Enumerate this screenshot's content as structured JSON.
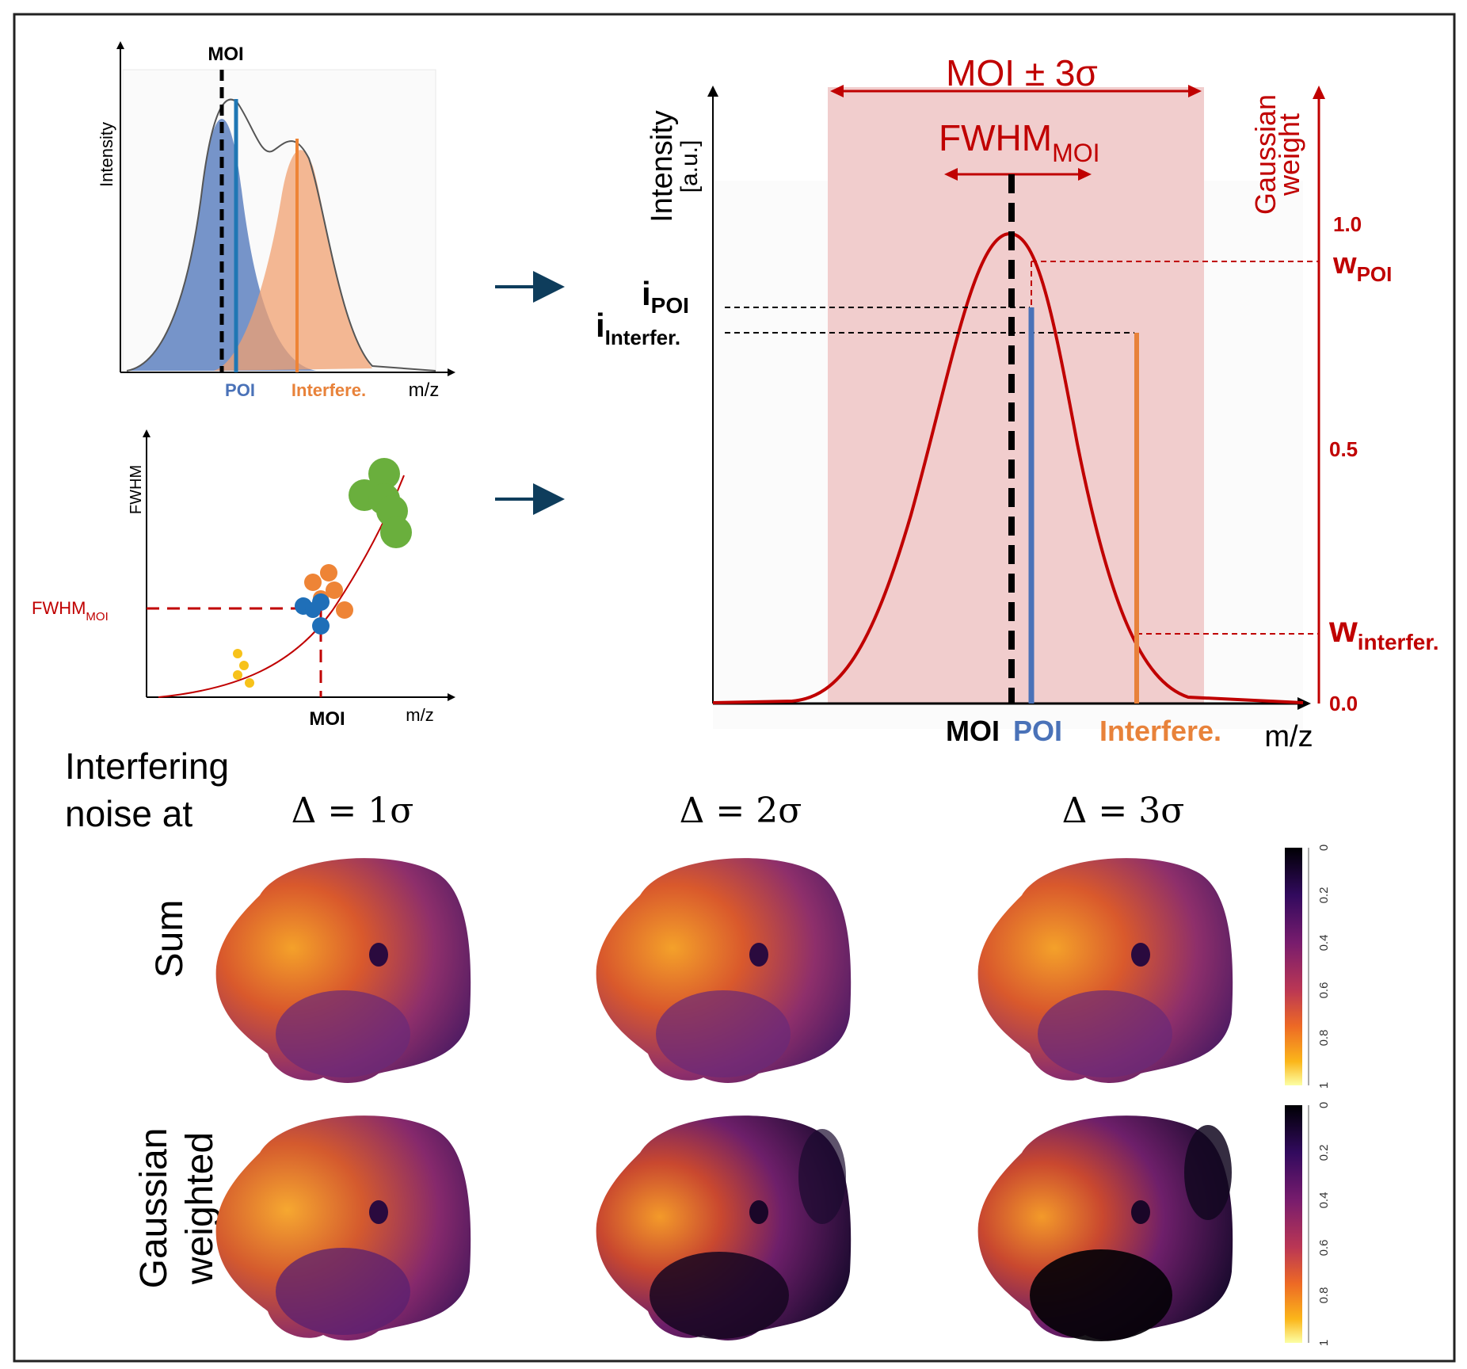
{
  "panel_a": {
    "moi_label": "MOI",
    "y_label": "Intensity",
    "x_label": "m/z",
    "poi_label": "POI",
    "interf_label": "Interfere."
  },
  "panel_b": {
    "y_label": "FWHM",
    "x_label": "m/z",
    "moi_label": "MOI",
    "fwhm_label": "FWHM",
    "fwhm_sub": "MOI"
  },
  "panel_c": {
    "range_label": "MOI ± 3σ",
    "fwhm_label": "FWHM",
    "fwhm_sub": "MOI",
    "y_left_label_line1": "Intensity",
    "y_left_label_line2": "[a.u.]",
    "y_right_label_line1": "Gaussian",
    "y_right_label_line2": "weight",
    "i_poi": "i",
    "i_poi_sub": "POI",
    "i_interf": "i",
    "i_interf_sub": "Interfer.",
    "w_poi": "w",
    "w_poi_sub": "POI",
    "w_interf": "w",
    "w_interf_sub": "interfer.",
    "tick_1": "1.0",
    "tick_05": "0.5",
    "tick_0": "0.0",
    "moi": "MOI",
    "poi": "POI",
    "interf": "Interfere.",
    "mz": "m/z"
  },
  "panel_d": {
    "heading_line1": "Interfering",
    "heading_line2": "noise at",
    "deltas": [
      "Δ =  1σ",
      "Δ = 2σ",
      "Δ = 3σ"
    ],
    "rows": [
      "Sum",
      "Gaussian",
      "weighted"
    ],
    "colorbar_ticks": [
      "0",
      "0.2",
      "0.4",
      "0.6",
      "0.8",
      "1"
    ]
  },
  "colors": {
    "blue": "#4a72b8",
    "orange": "#e8823a",
    "red": "#c00000",
    "arrow": "#0e3d5c",
    "band": "#f0c8c8"
  }
}
